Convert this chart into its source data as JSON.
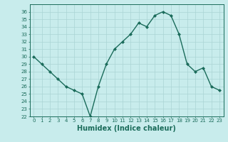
{
  "x": [
    0,
    1,
    2,
    3,
    4,
    5,
    6,
    7,
    8,
    9,
    10,
    11,
    12,
    13,
    14,
    15,
    16,
    17,
    18,
    19,
    20,
    21,
    22,
    23
  ],
  "y": [
    30,
    29,
    28,
    27,
    26,
    25.5,
    25,
    22,
    26,
    29,
    31,
    32,
    33,
    34.5,
    34,
    35.5,
    36,
    35.5,
    33,
    29,
    28,
    28.5,
    26,
    25.5
  ],
  "line_color": "#1a6b5a",
  "marker": "D",
  "marker_size": 2,
  "bg_color": "#c8ecec",
  "grid_color": "#aad4d4",
  "xlabel": "Humidex (Indice chaleur)",
  "ylim": [
    22,
    37
  ],
  "xlim": [
    -0.5,
    23.5
  ],
  "yticks": [
    22,
    23,
    24,
    25,
    26,
    27,
    28,
    29,
    30,
    31,
    32,
    33,
    34,
    35,
    36
  ],
  "xticks": [
    0,
    1,
    2,
    3,
    4,
    5,
    6,
    7,
    8,
    9,
    10,
    11,
    12,
    13,
    14,
    15,
    16,
    17,
    18,
    19,
    20,
    21,
    22,
    23
  ],
  "tick_color": "#1a6b5a",
  "label_fontsize": 7,
  "tick_fontsize": 5,
  "linewidth": 1.0
}
